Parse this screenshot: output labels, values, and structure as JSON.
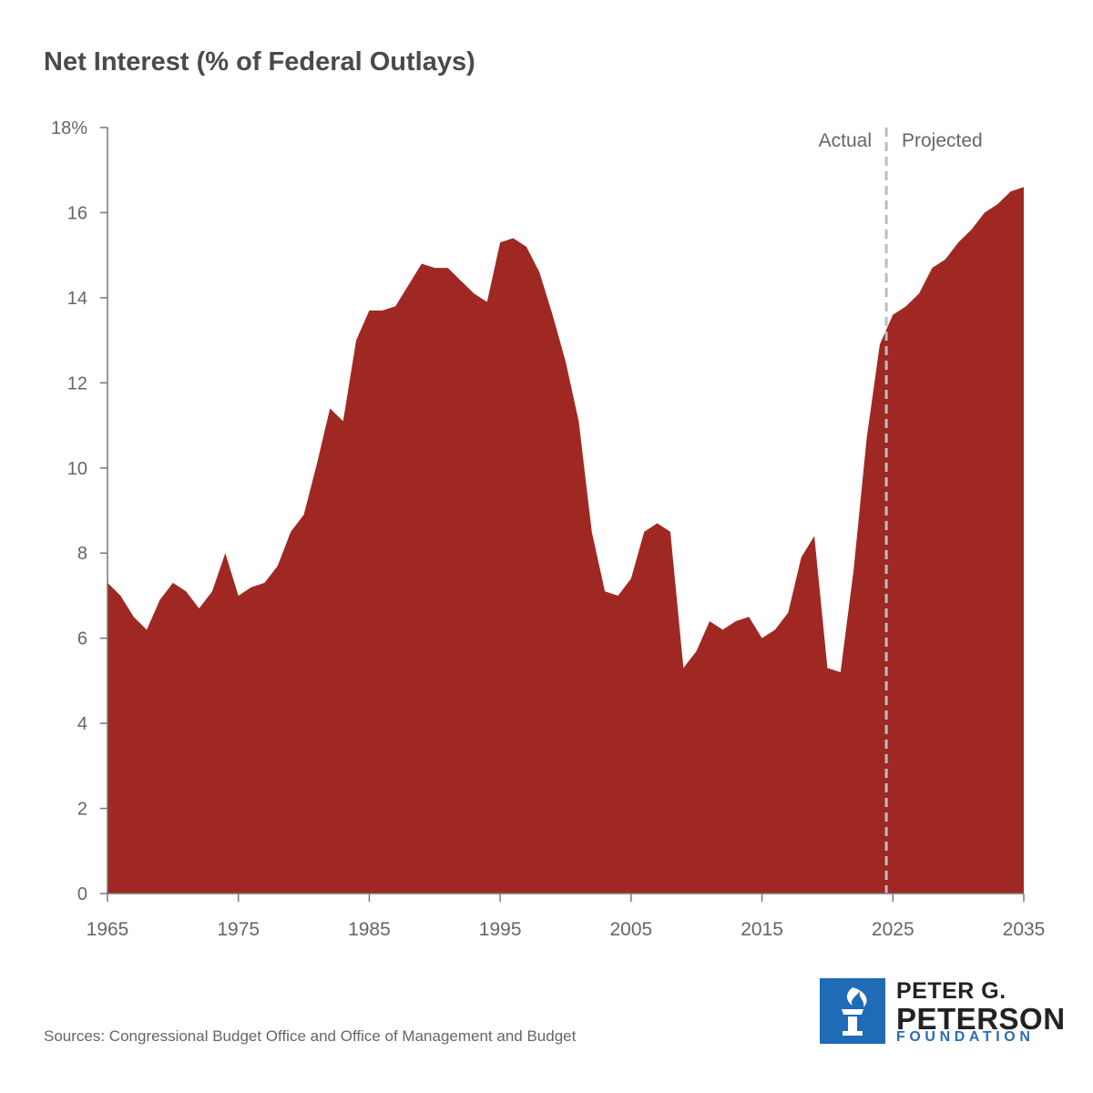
{
  "title": "Net Interest (% of Federal Outlays)",
  "source": "Sources: Congressional Budget Office and Office of Management and Budget",
  "logo": {
    "line1": "PETER G.",
    "line2": "PETERSON",
    "line3": "FOUNDATION",
    "icon": "torch-icon",
    "color": "#1f6bb5"
  },
  "colors": {
    "area": "#a02822",
    "axis": "#777777",
    "divider": "#bdbdbd"
  },
  "chart_data": {
    "type": "area",
    "title": "Net Interest (% of Federal Outlays)",
    "xlabel": "",
    "ylabel": "",
    "xlim": [
      1965,
      2035
    ],
    "ylim": [
      0,
      18
    ],
    "x_ticks": [
      1965,
      1975,
      1985,
      1995,
      2005,
      2015,
      2025,
      2035
    ],
    "y_ticks": [
      0,
      2,
      4,
      6,
      8,
      10,
      12,
      14,
      16,
      18
    ],
    "y_tick_labels": [
      "0",
      "2",
      "4",
      "6",
      "8",
      "10",
      "12",
      "14",
      "16",
      "18%"
    ],
    "divider_x": 2024.5,
    "annotations": {
      "left": "Actual",
      "right": "Projected"
    },
    "x": [
      1965,
      1966,
      1967,
      1968,
      1969,
      1970,
      1971,
      1972,
      1973,
      1974,
      1975,
      1976,
      1977,
      1978,
      1979,
      1980,
      1981,
      1982,
      1983,
      1984,
      1985,
      1986,
      1987,
      1988,
      1989,
      1990,
      1991,
      1992,
      1993,
      1994,
      1995,
      1996,
      1997,
      1998,
      1999,
      2000,
      2001,
      2002,
      2003,
      2004,
      2005,
      2006,
      2007,
      2008,
      2009,
      2010,
      2011,
      2012,
      2013,
      2014,
      2015,
      2016,
      2017,
      2018,
      2019,
      2020,
      2021,
      2022,
      2023,
      2024,
      2025,
      2026,
      2027,
      2028,
      2029,
      2030,
      2031,
      2032,
      2033,
      2034,
      2035
    ],
    "values": [
      7.3,
      7.0,
      6.5,
      6.2,
      6.9,
      7.3,
      7.1,
      6.7,
      7.1,
      8.0,
      7.0,
      7.2,
      7.3,
      7.7,
      8.5,
      8.9,
      10.1,
      11.4,
      11.1,
      13.0,
      13.7,
      13.7,
      13.8,
      14.3,
      14.8,
      14.7,
      14.7,
      14.4,
      14.1,
      13.9,
      15.3,
      15.4,
      15.2,
      14.6,
      13.6,
      12.5,
      11.1,
      8.5,
      7.1,
      7.0,
      7.4,
      8.5,
      8.7,
      8.5,
      5.3,
      5.7,
      6.4,
      6.2,
      6.4,
      6.5,
      6.0,
      6.2,
      6.6,
      7.9,
      8.4,
      5.3,
      5.2,
      7.6,
      10.7,
      12.9,
      13.6,
      13.8,
      14.1,
      14.7,
      14.9,
      15.3,
      15.6,
      16.0,
      16.2,
      16.5,
      16.6
    ]
  }
}
